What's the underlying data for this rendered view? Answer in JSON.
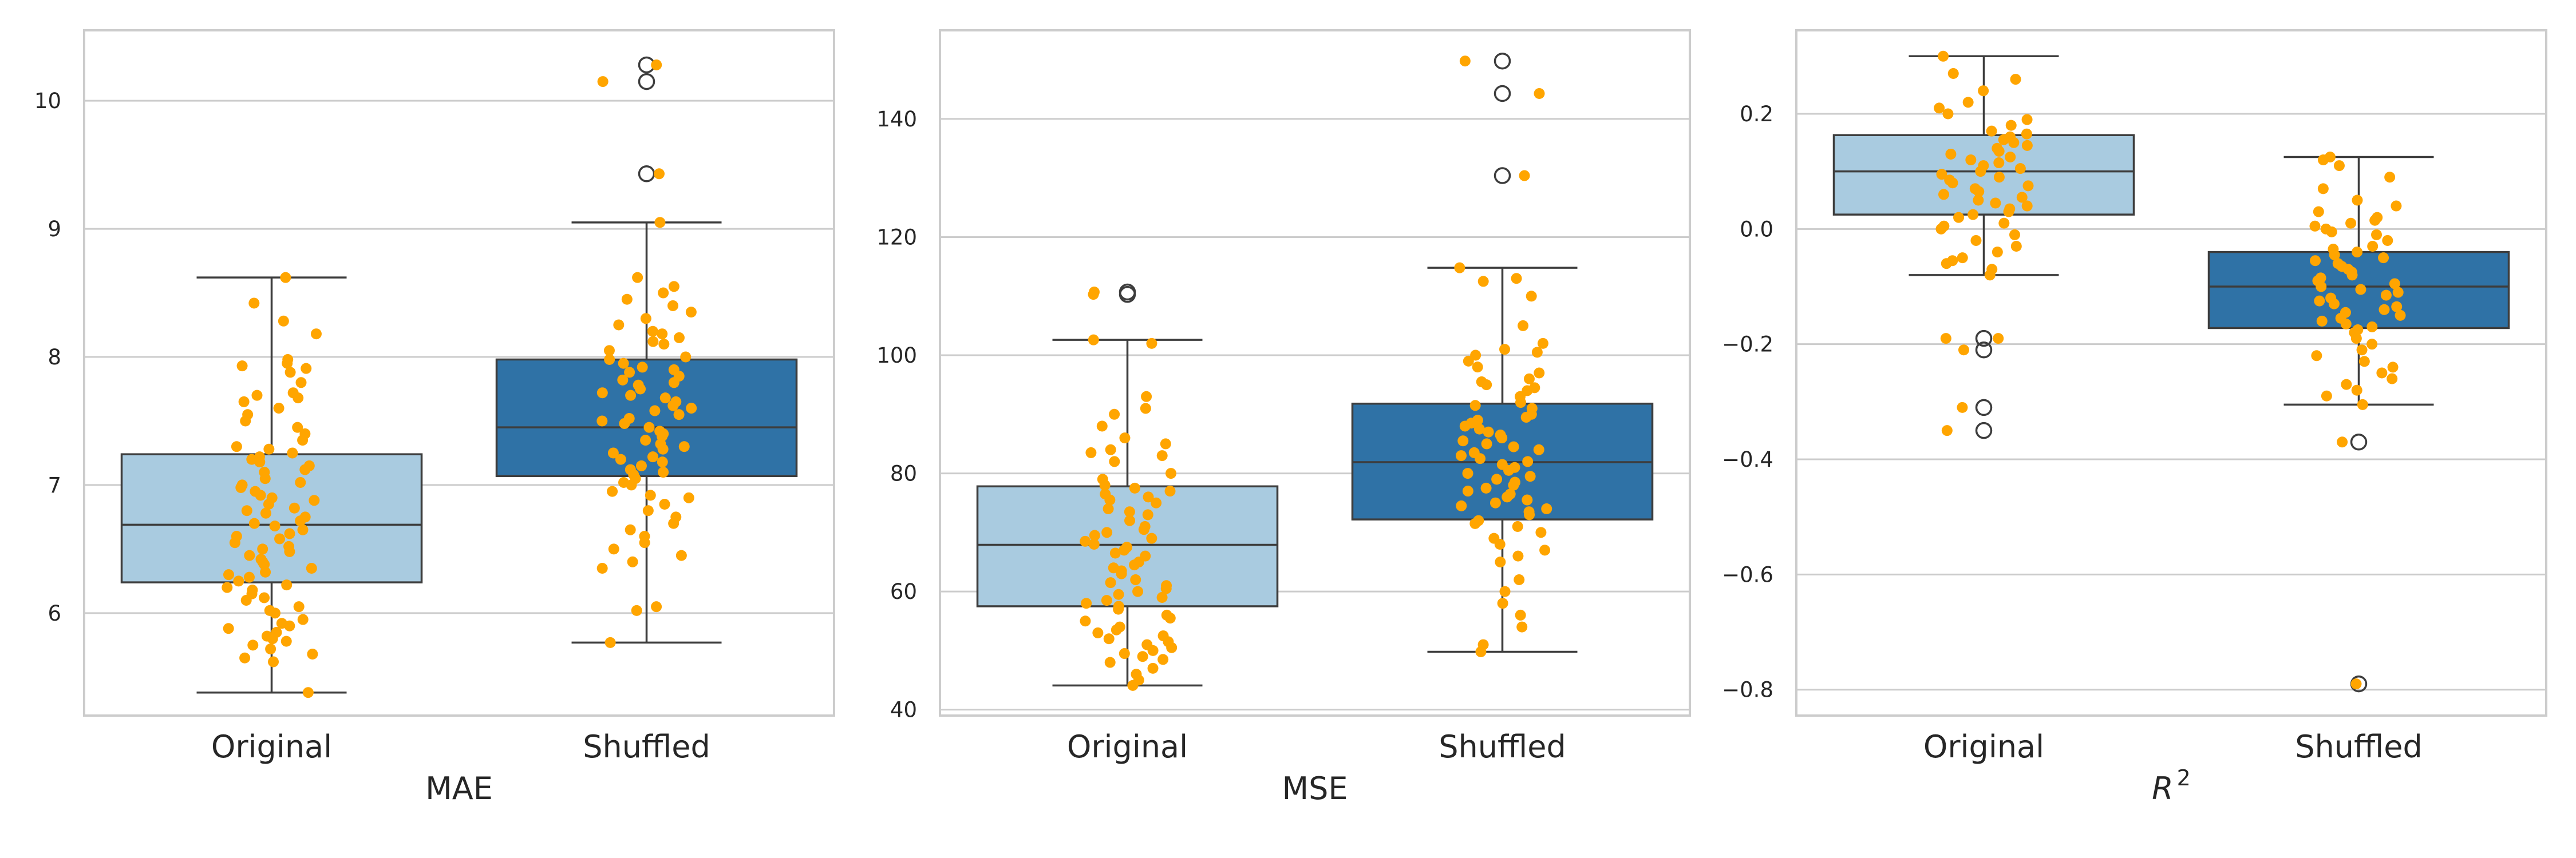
{
  "chart_data": [
    {
      "type": "box",
      "xlabel": "MAE",
      "categories": [
        "Original",
        "Shuffled"
      ],
      "ylim": [
        5.2,
        10.55
      ],
      "yticks": [
        6,
        7,
        8,
        9,
        10
      ],
      "ytick_labels": [
        "6",
        "7",
        "8",
        "9",
        "10"
      ],
      "grid": "horizontal",
      "boxes": [
        {
          "category": "Original",
          "whisker_low": 5.38,
          "q1": 6.24,
          "median": 6.69,
          "q3": 7.24,
          "whisker_high": 8.62,
          "fliers": []
        },
        {
          "category": "Shuffled",
          "whisker_low": 5.77,
          "q1": 7.07,
          "median": 7.45,
          "q3": 7.98,
          "whisker_high": 9.05,
          "fliers": [
            9.43,
            10.15,
            10.28
          ]
        }
      ],
      "points": {
        "Original": [
          8.62,
          8.42,
          8.28,
          8.18,
          7.98,
          7.95,
          7.93,
          7.91,
          7.88,
          7.8,
          7.72,
          7.7,
          7.68,
          7.65,
          7.6,
          7.55,
          7.5,
          7.45,
          7.4,
          7.35,
          7.3,
          7.28,
          7.25,
          7.22,
          7.2,
          7.18,
          7.15,
          7.12,
          7.1,
          7.05,
          7.02,
          7.0,
          6.98,
          6.95,
          6.92,
          6.9,
          6.88,
          6.85,
          6.82,
          6.8,
          6.78,
          6.75,
          6.72,
          6.7,
          6.68,
          6.65,
          6.62,
          6.6,
          6.58,
          6.55,
          6.52,
          6.5,
          6.48,
          6.45,
          6.42,
          6.4,
          6.38,
          6.35,
          6.32,
          6.3,
          6.28,
          6.25,
          6.22,
          6.2,
          6.18,
          6.15,
          6.12,
          6.1,
          6.05,
          6.02,
          6.0,
          5.95,
          5.92,
          5.9,
          5.88,
          5.85,
          5.82,
          5.8,
          5.78,
          5.75,
          5.72,
          5.68,
          5.65,
          5.62,
          5.38
        ],
        "Shuffled": [
          10.28,
          10.15,
          9.43,
          9.05,
          8.62,
          8.55,
          8.5,
          8.45,
          8.4,
          8.35,
          8.3,
          8.25,
          8.2,
          8.18,
          8.15,
          8.12,
          8.1,
          8.05,
          8.0,
          7.98,
          7.95,
          7.92,
          7.9,
          7.88,
          7.85,
          7.82,
          7.8,
          7.78,
          7.75,
          7.72,
          7.7,
          7.68,
          7.65,
          7.62,
          7.6,
          7.58,
          7.55,
          7.52,
          7.5,
          7.48,
          7.45,
          7.42,
          7.4,
          7.38,
          7.35,
          7.32,
          7.3,
          7.28,
          7.25,
          7.22,
          7.2,
          7.18,
          7.15,
          7.12,
          7.1,
          7.08,
          7.05,
          7.02,
          7.0,
          6.95,
          6.92,
          6.9,
          6.85,
          6.8,
          6.75,
          6.7,
          6.65,
          6.6,
          6.55,
          6.5,
          6.45,
          6.4,
          6.35,
          6.05,
          6.02,
          5.77
        ]
      }
    },
    {
      "type": "box",
      "xlabel": "MSE",
      "categories": [
        "Original",
        "Shuffled"
      ],
      "ylim": [
        39,
        155
      ],
      "yticks": [
        40,
        60,
        80,
        100,
        120,
        140
      ],
      "ytick_labels": [
        "40",
        "60",
        "80",
        "100",
        "120",
        "140"
      ],
      "grid": "horizontal",
      "boxes": [
        {
          "category": "Original",
          "whisker_low": 44.1,
          "q1": 57.5,
          "median": 67.9,
          "q3": 77.8,
          "whisker_high": 102.6,
          "fliers": [
            110.3,
            110.7
          ]
        },
        {
          "category": "Shuffled",
          "whisker_low": 49.8,
          "q1": 72.2,
          "median": 81.9,
          "q3": 91.8,
          "whisker_high": 114.8,
          "fliers": [
            130.4,
            144.3,
            149.8
          ]
        }
      ],
      "points": {
        "Original": [
          110.7,
          110.3,
          102.6,
          102.0,
          93.0,
          91.0,
          90.0,
          88.0,
          86.0,
          85.0,
          84.0,
          83.5,
          83.0,
          82.0,
          80.0,
          79.0,
          78.0,
          77.5,
          77.0,
          76.5,
          76.0,
          75.5,
          75.0,
          74.0,
          73.5,
          73.0,
          72.0,
          71.0,
          70.5,
          70.0,
          69.5,
          69.0,
          68.5,
          68.0,
          67.5,
          67.0,
          66.5,
          66.0,
          65.0,
          64.5,
          64.0,
          63.5,
          63.0,
          62.0,
          61.5,
          61.0,
          60.5,
          60.0,
          59.5,
          59.0,
          58.5,
          58.0,
          57.5,
          57.0,
          56.0,
          55.5,
          55.0,
          54.0,
          53.5,
          53.0,
          52.5,
          52.0,
          51.5,
          51.0,
          50.5,
          50.0,
          49.5,
          49.0,
          48.5,
          48.0,
          47.0,
          46.0,
          45.0,
          44.1
        ],
        "Shuffled": [
          149.8,
          144.3,
          130.4,
          114.8,
          113.0,
          112.5,
          110.0,
          105.0,
          102.0,
          101.0,
          100.5,
          100.0,
          99.0,
          98.0,
          97.0,
          96.0,
          95.5,
          95.0,
          94.5,
          94.0,
          93.0,
          92.0,
          91.5,
          91.0,
          90.0,
          89.5,
          89.0,
          88.5,
          88.0,
          87.5,
          87.0,
          86.5,
          86.0,
          85.5,
          85.0,
          84.5,
          84.0,
          83.5,
          83.0,
          82.5,
          82.0,
          81.5,
          81.0,
          80.5,
          80.0,
          79.5,
          79.0,
          78.5,
          78.0,
          77.5,
          77.0,
          76.5,
          76.0,
          75.5,
          75.0,
          74.5,
          74.0,
          73.5,
          73.0,
          72.0,
          71.5,
          71.0,
          70.0,
          69.0,
          68.0,
          67.0,
          66.0,
          65.0,
          62.0,
          60.0,
          58.0,
          56.0,
          54.0,
          51.0,
          49.8
        ]
      }
    },
    {
      "type": "box",
      "xlabel": "R",
      "xlabel_superscript": "2",
      "categories": [
        "Original",
        "Shuffled"
      ],
      "ylim": [
        -0.845,
        0.345
      ],
      "yticks": [
        -0.8,
        -0.6,
        -0.4,
        -0.2,
        0.0,
        0.2
      ],
      "ytick_labels": [
        "−0.8",
        "−0.6",
        "−0.4",
        "−0.2",
        "0.0",
        "0.2"
      ],
      "grid": "horizontal",
      "boxes": [
        {
          "category": "Original",
          "whisker_low": -0.08,
          "q1": 0.025,
          "median": 0.1,
          "q3": 0.163,
          "whisker_high": 0.3,
          "fliers": [
            -0.19,
            -0.21,
            -0.31,
            -0.35
          ]
        },
        {
          "category": "Shuffled",
          "whisker_low": -0.305,
          "q1": -0.172,
          "median": -0.1,
          "q3": -0.04,
          "whisker_high": 0.125,
          "fliers": [
            -0.37,
            -0.79
          ]
        }
      ],
      "points": {
        "Original": [
          0.3,
          0.27,
          0.26,
          0.24,
          0.22,
          0.21,
          0.2,
          0.19,
          0.18,
          0.17,
          0.165,
          0.16,
          0.155,
          0.15,
          0.145,
          0.14,
          0.135,
          0.13,
          0.125,
          0.12,
          0.115,
          0.11,
          0.105,
          0.1,
          0.095,
          0.09,
          0.085,
          0.08,
          0.075,
          0.07,
          0.065,
          0.06,
          0.055,
          0.05,
          0.045,
          0.04,
          0.035,
          0.03,
          0.025,
          0.02,
          0.01,
          0.005,
          0.0,
          -0.01,
          -0.02,
          -0.03,
          -0.04,
          -0.05,
          -0.055,
          -0.06,
          -0.07,
          -0.08,
          -0.19,
          -0.19,
          -0.21,
          -0.31,
          -0.35
        ],
        "Shuffled": [
          0.125,
          0.12,
          0.11,
          0.09,
          0.07,
          0.05,
          0.04,
          0.03,
          0.02,
          0.015,
          0.01,
          0.005,
          0.0,
          -0.005,
          -0.01,
          -0.02,
          -0.03,
          -0.035,
          -0.04,
          -0.045,
          -0.05,
          -0.055,
          -0.06,
          -0.065,
          -0.07,
          -0.075,
          -0.08,
          -0.085,
          -0.09,
          -0.095,
          -0.1,
          -0.105,
          -0.11,
          -0.115,
          -0.12,
          -0.125,
          -0.13,
          -0.135,
          -0.14,
          -0.145,
          -0.15,
          -0.155,
          -0.16,
          -0.165,
          -0.17,
          -0.175,
          -0.18,
          -0.19,
          -0.2,
          -0.21,
          -0.22,
          -0.23,
          -0.24,
          -0.25,
          -0.26,
          -0.27,
          -0.28,
          -0.29,
          -0.305,
          -0.37,
          -0.79
        ]
      }
    }
  ],
  "colors": {
    "original_box": "#a9cbe0",
    "shuffled_box": "#2f72a6",
    "points": "#ffa500",
    "edge": "#3d3d3d",
    "grid": "#cccccc",
    "frame": "#cccccc",
    "text": "#262626"
  }
}
